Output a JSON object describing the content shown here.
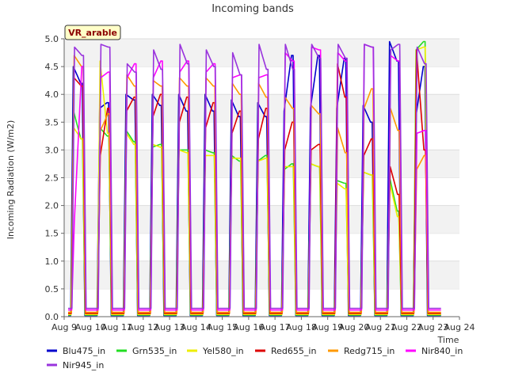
{
  "chart_data": {
    "type": "line",
    "title": "Incoming bands",
    "xlabel": "Time",
    "ylabel": "Incoming Radiation (W/m2)",
    "site_label": "VR_arable",
    "ylim": [
      0,
      5.0
    ],
    "xlim": [
      0,
      15
    ],
    "yticks": [
      "0.0",
      "0.5",
      "1.0",
      "1.5",
      "2.0",
      "2.5",
      "3.0",
      "3.5",
      "4.0",
      "4.5",
      "5.0"
    ],
    "xticks": [
      "Aug 9",
      "Aug 10",
      "Aug 11",
      "Aug 12",
      "Aug 13",
      "Aug 14",
      "Aug 15",
      "Aug 16",
      "Aug 17",
      "Aug 18",
      "Aug 19",
      "Aug 20",
      "Aug 21",
      "Aug 22",
      "Aug 23",
      "Aug 24"
    ],
    "grid": "horizontal bands",
    "legend_position": "bottom",
    "x_start": "Aug 9",
    "series": [
      {
        "name": "Blu475_in",
        "color": "#0000cc",
        "night": 0.02,
        "up": [
          4.5,
          3.75,
          4.0,
          4.0,
          4.0,
          4.0,
          3.9,
          3.85,
          3.7,
          3.75,
          3.75,
          3.8,
          4.95,
          3.6
        ],
        "down": [
          4.2,
          3.85,
          3.9,
          3.8,
          3.7,
          3.7,
          3.6,
          3.6,
          4.7,
          4.7,
          4.65,
          3.5,
          4.6,
          4.5
        ]
      },
      {
        "name": "Grn535_in",
        "color": "#22dd22",
        "night": 0.03,
        "up": [
          3.7,
          3.4,
          3.35,
          3.05,
          3.0,
          3.0,
          2.9,
          2.8,
          2.65,
          2.75,
          2.45,
          2.6,
          2.5,
          4.8
        ],
        "down": [
          3.2,
          3.25,
          3.15,
          3.1,
          3.0,
          2.95,
          2.8,
          2.9,
          2.75,
          2.7,
          2.4,
          2.55,
          1.9,
          4.95
        ]
      },
      {
        "name": "Yel580_in",
        "color": "#eeee00",
        "night": 0.04,
        "up": [
          3.4,
          4.6,
          3.3,
          3.1,
          3.0,
          2.9,
          2.85,
          2.8,
          2.7,
          2.75,
          2.4,
          2.6,
          2.4,
          4.8
        ],
        "down": [
          3.2,
          3.3,
          3.1,
          3.05,
          2.95,
          2.9,
          2.85,
          2.85,
          2.7,
          2.7,
          2.3,
          2.55,
          1.8,
          4.85
        ]
      },
      {
        "name": "Red655_in",
        "color": "#dd0000",
        "night": 0.06,
        "up": [
          4.3,
          2.9,
          3.7,
          3.6,
          3.5,
          3.4,
          3.3,
          3.2,
          3.0,
          3.0,
          4.55,
          2.9,
          2.7,
          4.8
        ],
        "down": [
          4.15,
          3.75,
          3.95,
          4.0,
          3.95,
          3.85,
          3.7,
          3.75,
          3.5,
          3.1,
          3.95,
          3.2,
          2.2,
          3.0
        ]
      },
      {
        "name": "Redg715_in",
        "color": "#ff9900",
        "night": 0.08,
        "up": [
          4.7,
          3.35,
          4.35,
          4.25,
          4.3,
          4.3,
          4.2,
          4.2,
          3.95,
          3.8,
          3.4,
          3.75,
          3.75,
          2.65
        ],
        "down": [
          4.5,
          3.65,
          4.15,
          4.15,
          4.15,
          4.15,
          4.0,
          3.95,
          3.75,
          3.65,
          2.95,
          4.1,
          3.35,
          2.9
        ]
      },
      {
        "name": "Nir840_in",
        "color": "#ff00ff",
        "night": 0.12,
        "up": [
          1.7,
          4.3,
          4.3,
          4.3,
          4.4,
          4.4,
          4.3,
          4.3,
          4.75,
          4.85,
          4.75,
          4.9,
          4.7,
          3.3
        ],
        "down": [
          4.5,
          4.4,
          4.55,
          4.6,
          4.6,
          4.55,
          4.35,
          4.35,
          4.6,
          4.8,
          4.6,
          4.85,
          4.6,
          3.35
        ]
      },
      {
        "name": "Nir945_in",
        "color": "#9933dd",
        "night": 0.15,
        "up": [
          4.85,
          4.9,
          4.55,
          4.8,
          4.9,
          4.8,
          4.75,
          4.9,
          4.9,
          4.9,
          4.9,
          4.9,
          4.8,
          4.85
        ],
        "down": [
          4.7,
          4.85,
          4.4,
          4.45,
          4.55,
          4.5,
          4.35,
          4.45,
          4.45,
          4.65,
          4.65,
          4.85,
          4.9,
          4.55
        ]
      }
    ]
  }
}
